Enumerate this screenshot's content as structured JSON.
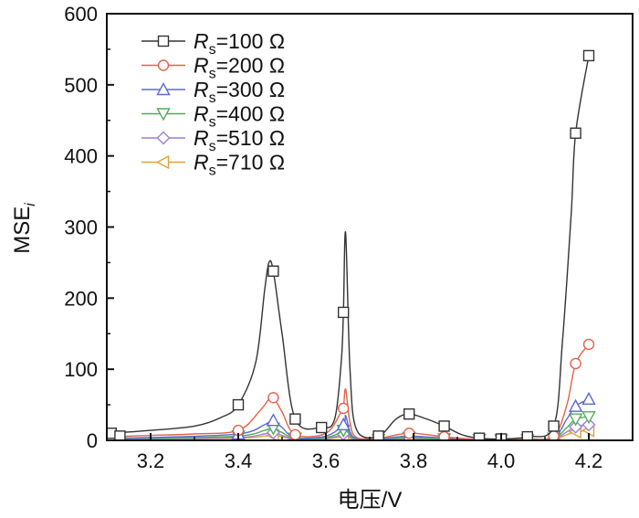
{
  "chart_data": {
    "type": "line",
    "title": "",
    "xlabel": "电压/V",
    "ylabel": "MSE",
    "ylabel_subscript": "i",
    "xlim": [
      3.1,
      4.3
    ],
    "ylim": [
      0,
      600
    ],
    "xticks": [
      3.2,
      3.4,
      3.6,
      3.8,
      4.0,
      4.2
    ],
    "xtick_labels": [
      "3.2",
      "3.4",
      "3.6",
      "3.8",
      "4.0",
      "4.2"
    ],
    "yticks": [
      0,
      100,
      200,
      300,
      400,
      500,
      600
    ],
    "ytick_labels": [
      "0",
      "100",
      "200",
      "300",
      "400",
      "500",
      "600"
    ],
    "legend_position": "top-left",
    "series": [
      {
        "legend_prefix": "R",
        "legend_sub": "s",
        "legend_value": "=100 Ω",
        "color": "#333333",
        "marker": "square",
        "curve": [
          [
            3.11,
            10
          ],
          [
            3.2,
            14
          ],
          [
            3.3,
            20
          ],
          [
            3.36,
            32
          ],
          [
            3.4,
            50
          ],
          [
            3.44,
            110
          ],
          [
            3.46,
            210
          ],
          [
            3.47,
            250
          ],
          [
            3.48,
            238
          ],
          [
            3.5,
            150
          ],
          [
            3.53,
            30
          ],
          [
            3.59,
            18
          ],
          [
            3.62,
            30
          ],
          [
            3.635,
            110
          ],
          [
            3.64,
            180
          ],
          [
            3.645,
            292
          ],
          [
            3.655,
            100
          ],
          [
            3.67,
            15
          ],
          [
            3.72,
            6
          ],
          [
            3.76,
            30
          ],
          [
            3.79,
            37
          ],
          [
            3.83,
            30
          ],
          [
            3.87,
            20
          ],
          [
            3.91,
            8
          ],
          [
            3.95,
            3
          ],
          [
            4.0,
            2
          ],
          [
            4.06,
            5
          ],
          [
            4.12,
            20
          ],
          [
            4.14,
            140
          ],
          [
            4.16,
            320
          ],
          [
            4.17,
            432
          ],
          [
            4.2,
            541
          ]
        ],
        "markers": [
          [
            3.11,
            10
          ],
          [
            3.13,
            6
          ],
          [
            3.4,
            50
          ],
          [
            3.48,
            238
          ],
          [
            3.53,
            30
          ],
          [
            3.59,
            18
          ],
          [
            3.64,
            180
          ],
          [
            3.72,
            6
          ],
          [
            3.79,
            37
          ],
          [
            3.87,
            20
          ],
          [
            3.95,
            3
          ],
          [
            4.0,
            2
          ],
          [
            4.06,
            5
          ],
          [
            4.12,
            20
          ],
          [
            4.17,
            432
          ],
          [
            4.2,
            541
          ]
        ]
      },
      {
        "legend_prefix": "R",
        "legend_sub": "s",
        "legend_value": "=200 Ω",
        "color": "#e4614a",
        "marker": "circle",
        "curve": [
          [
            3.11,
            5
          ],
          [
            3.2,
            7
          ],
          [
            3.3,
            9
          ],
          [
            3.4,
            14
          ],
          [
            3.45,
            42
          ],
          [
            3.47,
            58
          ],
          [
            3.48,
            60
          ],
          [
            3.5,
            40
          ],
          [
            3.53,
            8
          ],
          [
            3.6,
            10
          ],
          [
            3.635,
            40
          ],
          [
            3.64,
            45
          ],
          [
            3.645,
            72
          ],
          [
            3.655,
            25
          ],
          [
            3.67,
            4
          ],
          [
            3.72,
            3
          ],
          [
            3.79,
            10
          ],
          [
            3.87,
            5
          ],
          [
            3.95,
            1
          ],
          [
            4.0,
            1
          ],
          [
            4.06,
            2
          ],
          [
            4.12,
            6
          ],
          [
            4.15,
            50
          ],
          [
            4.17,
            108
          ],
          [
            4.2,
            135
          ]
        ],
        "markers": [
          [
            3.11,
            5
          ],
          [
            3.4,
            14
          ],
          [
            3.48,
            60
          ],
          [
            3.53,
            8
          ],
          [
            3.64,
            45
          ],
          [
            3.72,
            3
          ],
          [
            3.79,
            10
          ],
          [
            3.87,
            5
          ],
          [
            3.95,
            1
          ],
          [
            4.0,
            1
          ],
          [
            4.06,
            2
          ],
          [
            4.12,
            6
          ],
          [
            4.17,
            108
          ],
          [
            4.2,
            135
          ]
        ]
      },
      {
        "legend_prefix": "R",
        "legend_sub": "s",
        "legend_value": "=300 Ω",
        "color": "#5b6bd0",
        "marker": "triangle-up",
        "curve": [
          [
            3.11,
            3
          ],
          [
            3.2,
            4
          ],
          [
            3.4,
            9
          ],
          [
            3.46,
            22
          ],
          [
            3.48,
            28
          ],
          [
            3.5,
            18
          ],
          [
            3.53,
            4
          ],
          [
            3.6,
            6
          ],
          [
            3.64,
            22
          ],
          [
            3.645,
            35
          ],
          [
            3.655,
            12
          ],
          [
            3.67,
            3
          ],
          [
            3.72,
            2
          ],
          [
            3.79,
            6
          ],
          [
            3.87,
            3
          ],
          [
            3.95,
            1
          ],
          [
            4.0,
            1
          ],
          [
            4.06,
            1
          ],
          [
            4.12,
            4
          ],
          [
            4.15,
            30
          ],
          [
            4.17,
            48
          ],
          [
            4.2,
            58
          ]
        ],
        "markers": [
          [
            3.4,
            9
          ],
          [
            3.48,
            28
          ],
          [
            3.53,
            4
          ],
          [
            3.64,
            22
          ],
          [
            3.72,
            2
          ],
          [
            3.79,
            6
          ],
          [
            3.87,
            3
          ],
          [
            3.95,
            1
          ],
          [
            4.0,
            1
          ],
          [
            4.06,
            1
          ],
          [
            4.12,
            4
          ],
          [
            4.17,
            48
          ],
          [
            4.2,
            58
          ]
        ]
      },
      {
        "legend_prefix": "R",
        "legend_sub": "s",
        "legend_value": "=400 Ω",
        "color": "#4fae5b",
        "marker": "triangle-down",
        "curve": [
          [
            3.11,
            2
          ],
          [
            3.2,
            3
          ],
          [
            3.4,
            6
          ],
          [
            3.46,
            14
          ],
          [
            3.48,
            17
          ],
          [
            3.5,
            11
          ],
          [
            3.53,
            3
          ],
          [
            3.6,
            4
          ],
          [
            3.64,
            14
          ],
          [
            3.645,
            24
          ],
          [
            3.655,
            8
          ],
          [
            3.67,
            2
          ],
          [
            3.72,
            1
          ],
          [
            3.79,
            4
          ],
          [
            3.87,
            2
          ],
          [
            3.95,
            1
          ],
          [
            4.0,
            0.5
          ],
          [
            4.06,
            1
          ],
          [
            4.12,
            3
          ],
          [
            4.15,
            18
          ],
          [
            4.17,
            30
          ],
          [
            4.2,
            33
          ]
        ],
        "markers": [
          [
            3.4,
            6
          ],
          [
            3.48,
            17
          ],
          [
            3.53,
            3
          ],
          [
            3.64,
            14
          ],
          [
            3.72,
            1
          ],
          [
            3.79,
            4
          ],
          [
            3.87,
            2
          ],
          [
            3.95,
            1
          ],
          [
            4.0,
            0.5
          ],
          [
            4.06,
            1
          ],
          [
            4.12,
            3
          ],
          [
            4.17,
            30
          ],
          [
            4.2,
            33
          ]
        ]
      },
      {
        "legend_prefix": "R",
        "legend_sub": "s",
        "legend_value": "=510 Ω",
        "color": "#9d7fd4",
        "marker": "diamond",
        "curve": [
          [
            3.11,
            1.5
          ],
          [
            3.2,
            2
          ],
          [
            3.4,
            4
          ],
          [
            3.46,
            9
          ],
          [
            3.48,
            11
          ],
          [
            3.5,
            7
          ],
          [
            3.53,
            2
          ],
          [
            3.6,
            3
          ],
          [
            3.64,
            9
          ],
          [
            3.645,
            16
          ],
          [
            3.655,
            5
          ],
          [
            3.67,
            1
          ],
          [
            3.72,
            1
          ],
          [
            3.79,
            3
          ],
          [
            3.87,
            1
          ],
          [
            3.95,
            0.5
          ],
          [
            4.0,
            0.5
          ],
          [
            4.06,
            1
          ],
          [
            4.12,
            2
          ],
          [
            4.15,
            12
          ],
          [
            4.17,
            19
          ],
          [
            4.2,
            22
          ]
        ],
        "markers": [
          [
            3.4,
            4
          ],
          [
            3.48,
            11
          ],
          [
            3.53,
            2
          ],
          [
            3.64,
            9
          ],
          [
            3.72,
            1
          ],
          [
            3.79,
            3
          ],
          [
            3.87,
            1
          ],
          [
            3.95,
            0.5
          ],
          [
            4.0,
            0.5
          ],
          [
            4.06,
            1
          ],
          [
            4.12,
            2
          ],
          [
            4.17,
            19
          ],
          [
            4.2,
            22
          ]
        ]
      },
      {
        "legend_prefix": "R",
        "legend_sub": "s",
        "legend_value": "=710 Ω",
        "color": "#e0a03a",
        "marker": "triangle-left",
        "curve": [
          [
            3.11,
            1
          ],
          [
            3.2,
            1.5
          ],
          [
            3.4,
            3
          ],
          [
            3.46,
            6
          ],
          [
            3.48,
            7
          ],
          [
            3.5,
            5
          ],
          [
            3.53,
            1.5
          ],
          [
            3.6,
            2
          ],
          [
            3.64,
            6
          ],
          [
            3.645,
            10
          ],
          [
            3.655,
            3
          ],
          [
            3.67,
            1
          ],
          [
            3.72,
            0.5
          ],
          [
            3.79,
            2
          ],
          [
            3.87,
            1
          ],
          [
            3.95,
            0.3
          ],
          [
            4.0,
            0.3
          ],
          [
            4.06,
            0.5
          ],
          [
            4.12,
            1.5
          ],
          [
            4.15,
            8
          ],
          [
            4.17,
            12
          ],
          [
            4.2,
            14
          ]
        ],
        "markers": [
          [
            3.4,
            3
          ],
          [
            3.48,
            7
          ],
          [
            3.53,
            1.5
          ],
          [
            3.64,
            6
          ],
          [
            3.72,
            0.5
          ],
          [
            3.79,
            2
          ],
          [
            3.87,
            1
          ],
          [
            3.95,
            0.3
          ],
          [
            4.0,
            0.3
          ],
          [
            4.06,
            0.5
          ],
          [
            4.12,
            1.5
          ],
          [
            4.17,
            12
          ],
          [
            4.2,
            14
          ]
        ]
      }
    ]
  }
}
